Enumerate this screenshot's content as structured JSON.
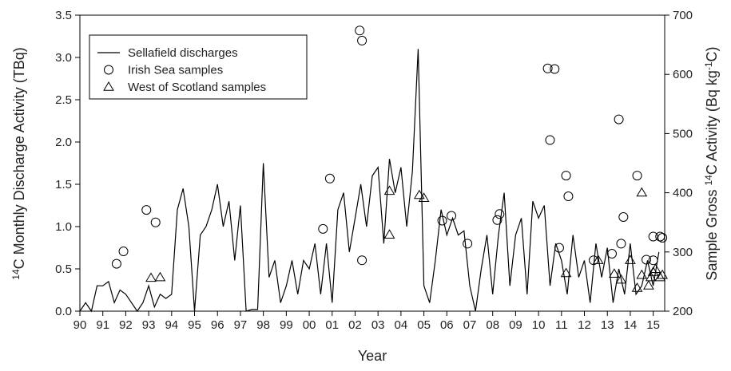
{
  "chart_data": {
    "type": "line_scatter",
    "x_label": "Year",
    "y_label": [
      "14",
      "C Monthly Discharge Activity (TBq)"
    ],
    "y2_label": [
      "Sample Gross ",
      "14",
      "C Activity (Bq kg",
      "-1",
      "C)"
    ],
    "xlim": [
      1990,
      2015.5
    ],
    "xticks": [
      {
        "value": 1990,
        "label": "90"
      },
      {
        "value": 1991,
        "label": "91"
      },
      {
        "value": 1992,
        "label": "92"
      },
      {
        "value": 1993,
        "label": "93"
      },
      {
        "value": 1994,
        "label": "94"
      },
      {
        "value": 1995,
        "label": "95"
      },
      {
        "value": 1996,
        "label": "96"
      },
      {
        "value": 1997,
        "label": "97"
      },
      {
        "value": 1998,
        "label": "98"
      },
      {
        "value": 1999,
        "label": "99"
      },
      {
        "value": 2000,
        "label": "00"
      },
      {
        "value": 2001,
        "label": "01"
      },
      {
        "value": 2002,
        "label": "02"
      },
      {
        "value": 2003,
        "label": "03"
      },
      {
        "value": 2004,
        "label": "04"
      },
      {
        "value": 2005,
        "label": "05"
      },
      {
        "value": 2006,
        "label": "06"
      },
      {
        "value": 2007,
        "label": "07"
      },
      {
        "value": 2008,
        "label": "08"
      },
      {
        "value": 2009,
        "label": "09"
      },
      {
        "value": 2010,
        "label": "10"
      },
      {
        "value": 2011,
        "label": "11"
      },
      {
        "value": 2012,
        "label": "12"
      },
      {
        "value": 2013,
        "label": "13"
      },
      {
        "value": 2014,
        "label": "14"
      },
      {
        "value": 2015,
        "label": "15"
      }
    ],
    "ylim": [
      0,
      3.5
    ],
    "yticks": [
      {
        "value": 0,
        "label": "0.0"
      },
      {
        "value": 0.5,
        "label": "0.5"
      },
      {
        "value": 1,
        "label": "1.0"
      },
      {
        "value": 1.5,
        "label": "1.5"
      },
      {
        "value": 2,
        "label": "2.0"
      },
      {
        "value": 2.5,
        "label": "2.5"
      },
      {
        "value": 3,
        "label": "3.0"
      },
      {
        "value": 3.5,
        "label": "3.5"
      }
    ],
    "y2lim": [
      200,
      700
    ],
    "y2ticks": [
      200,
      300,
      400,
      500,
      600,
      700
    ],
    "series": [
      {
        "name": "Sellafield discharges",
        "color": "#000000",
        "kind": "line",
        "x": [
          1990,
          1990.25,
          1990.5,
          1990.75,
          1991,
          1991.25,
          1991.5,
          1991.75,
          1992,
          1992.25,
          1992.5,
          1992.75,
          1993,
          1993.25,
          1993.5,
          1993.75,
          1994,
          1994.25,
          1994.5,
          1994.75,
          1995,
          1995.25,
          1995.5,
          1995.75,
          1996,
          1996.25,
          1996.5,
          1996.75,
          1997,
          1997.25,
          1997.5,
          1997.75,
          1998,
          1998.25,
          1998.5,
          1998.75,
          1999,
          1999.25,
          1999.5,
          1999.75,
          2000,
          2000.25,
          2000.5,
          2000.75,
          2001,
          2001.25,
          2001.5,
          2001.75,
          2002,
          2002.25,
          2002.5,
          2002.75,
          2003,
          2003.25,
          2003.5,
          2003.75,
          2004,
          2004.25,
          2004.5,
          2004.75,
          2005,
          2005.25,
          2005.5,
          2005.75,
          2006,
          2006.25,
          2006.5,
          2006.75,
          2007,
          2007.25,
          2007.5,
          2007.75,
          2008,
          2008.25,
          2008.5,
          2008.75,
          2009,
          2009.25,
          2009.5,
          2009.75,
          2010,
          2010.25,
          2010.5,
          2010.75,
          2011,
          2011.25,
          2011.5,
          2011.75,
          2012,
          2012.25,
          2012.5,
          2012.75,
          2013,
          2013.25,
          2013.5,
          2013.75,
          2014,
          2014.25,
          2014.5,
          2014.75,
          2015,
          2015.25
        ],
        "values": [
          0.0,
          0.1,
          0.0,
          0.3,
          0.3,
          0.35,
          0.1,
          0.25,
          0.2,
          0.1,
          0.0,
          0.1,
          0.3,
          0.05,
          0.2,
          0.15,
          0.2,
          1.2,
          1.45,
          1.0,
          0.0,
          0.9,
          1.0,
          1.2,
          1.5,
          1.0,
          1.3,
          0.6,
          1.25,
          0.0,
          0.02,
          0.02,
          1.75,
          0.4,
          0.6,
          0.1,
          0.3,
          0.6,
          0.2,
          0.6,
          0.5,
          0.8,
          0.2,
          0.8,
          0.1,
          1.2,
          1.4,
          0.7,
          1.1,
          1.5,
          1.0,
          1.6,
          1.7,
          0.8,
          1.8,
          1.4,
          1.7,
          1.0,
          1.65,
          3.1,
          0.3,
          0.1,
          0.6,
          1.2,
          0.9,
          1.1,
          0.9,
          0.95,
          0.3,
          0.0,
          0.5,
          0.9,
          0.2,
          0.9,
          1.4,
          0.3,
          0.9,
          1.1,
          0.2,
          1.3,
          1.1,
          1.25,
          0.3,
          0.8,
          0.6,
          0.2,
          0.9,
          0.4,
          0.6,
          0.1,
          0.8,
          0.4,
          0.75,
          0.1,
          0.5,
          0.2,
          0.8,
          0.2,
          0.3,
          0.6,
          0.3,
          0.7
        ]
      },
      {
        "name": "Irish Sea samples",
        "color": "#000000",
        "kind": "circle",
        "axis": "y2",
        "x": [
          1991.6,
          1991.9,
          1992.9,
          1993.3,
          2000.6,
          2000.9,
          2002.2,
          2002.3,
          2002.3,
          2005.8,
          2006.2,
          2006.9,
          2008.2,
          2008.3,
          2010.4,
          2010.5,
          2010.7,
          2010.9,
          2011.2,
          2011.3,
          2012.4,
          2013.2,
          2013.5,
          2013.6,
          2013.7,
          2014.3,
          2014.7,
          2015.0,
          2015.0,
          2015.3,
          2015.4
        ],
        "values": [
          280,
          301,
          371,
          350,
          339,
          424,
          674,
          657,
          286,
          353,
          361,
          314,
          354,
          364,
          610,
          489,
          609,
          307,
          429,
          394,
          286,
          297,
          524,
          314,
          359,
          429,
          287,
          326,
          286,
          326,
          324
        ]
      },
      {
        "name": "West of Scotland samples",
        "color": "#000000",
        "kind": "triangle",
        "axis": "y2",
        "x": [
          1993.1,
          1993.5,
          2003.5,
          2003.5,
          2004.8,
          2005.0,
          2011.2,
          2012.6,
          2013.3,
          2013.6,
          2014.0,
          2014.3,
          2014.5,
          2014.5,
          2014.8,
          2014.9,
          2015.0,
          2015.1,
          2015.3,
          2015.4
        ],
        "values": [
          256,
          257,
          403,
          329,
          396,
          391,
          264,
          286,
          263,
          253,
          286,
          239,
          400,
          261,
          243,
          257,
          266,
          271,
          257,
          261
        ]
      }
    ]
  }
}
